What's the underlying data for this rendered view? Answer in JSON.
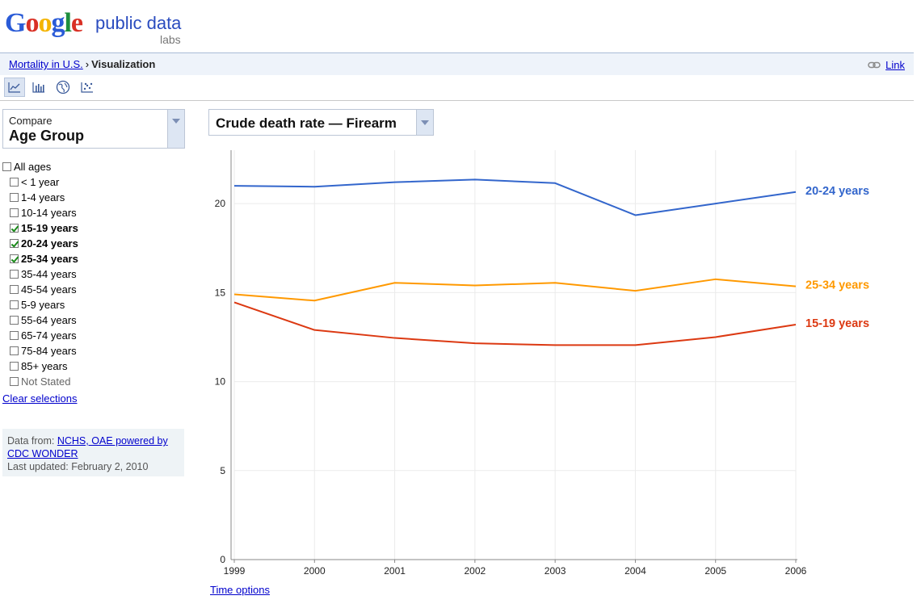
{
  "header": {
    "logo_letters": [
      {
        "ch": "G",
        "color": "#2a5bd7"
      },
      {
        "ch": "o",
        "color": "#d93025"
      },
      {
        "ch": "o",
        "color": "#f4b400"
      },
      {
        "ch": "g",
        "color": "#2a5bd7"
      },
      {
        "ch": "l",
        "color": "#1e8e3e"
      },
      {
        "ch": "e",
        "color": "#d93025"
      }
    ],
    "product": "public data",
    "labs": "labs"
  },
  "breadcrumb": {
    "parent": "Mortality in U.S.",
    "separator": "›",
    "current": "Visualization",
    "link_label": "Link"
  },
  "toolbar": {
    "buttons": [
      "line-chart-icon",
      "bar-chart-icon",
      "map-icon",
      "scatter-icon"
    ]
  },
  "compare": {
    "label": "Compare",
    "value": "Age Group"
  },
  "age_groups": [
    {
      "label": "All ages",
      "checked": false,
      "indent": false
    },
    {
      "label": "< 1 year",
      "checked": false,
      "indent": true
    },
    {
      "label": "1-4 years",
      "checked": false,
      "indent": true
    },
    {
      "label": "10-14 years",
      "checked": false,
      "indent": true
    },
    {
      "label": "15-19 years",
      "checked": true,
      "indent": true
    },
    {
      "label": "20-24 years",
      "checked": true,
      "indent": true
    },
    {
      "label": "25-34 years",
      "checked": true,
      "indent": true
    },
    {
      "label": "35-44 years",
      "checked": false,
      "indent": true
    },
    {
      "label": "45-54 years",
      "checked": false,
      "indent": true
    },
    {
      "label": "5-9 years",
      "checked": false,
      "indent": true
    },
    {
      "label": "55-64 years",
      "checked": false,
      "indent": true
    },
    {
      "label": "65-74 years",
      "checked": false,
      "indent": true
    },
    {
      "label": "75-84 years",
      "checked": false,
      "indent": true
    },
    {
      "label": "85+ years",
      "checked": false,
      "indent": true
    },
    {
      "label": "Not Stated",
      "checked": false,
      "indent": true
    }
  ],
  "clear_label": "Clear selections",
  "source": {
    "prefix": "Data from:",
    "link": "NCHS, OAE powered by CDC WONDER",
    "updated": "Last updated: February 2, 2010"
  },
  "metric": {
    "label": "Crude death rate — Firearm"
  },
  "time_options_label": "Time options",
  "chart_data": {
    "type": "line",
    "x": [
      1999,
      2000,
      2001,
      2002,
      2003,
      2004,
      2005,
      2006
    ],
    "ylim": [
      0,
      23
    ],
    "yticks": [
      0,
      5,
      10,
      15,
      20
    ],
    "grid": true,
    "series": [
      {
        "name": "20-24 years",
        "color": "#3366cc",
        "values": [
          21.0,
          20.95,
          21.2,
          21.35,
          21.15,
          19.35,
          20.0,
          20.65
        ]
      },
      {
        "name": "25-34 years",
        "color": "#ff9900",
        "values": [
          14.9,
          14.55,
          15.55,
          15.4,
          15.55,
          15.1,
          15.75,
          15.35
        ]
      },
      {
        "name": "15-19 years",
        "color": "#dc3912",
        "values": [
          14.45,
          12.9,
          12.45,
          12.15,
          12.05,
          12.05,
          12.5,
          13.2
        ]
      }
    ]
  }
}
